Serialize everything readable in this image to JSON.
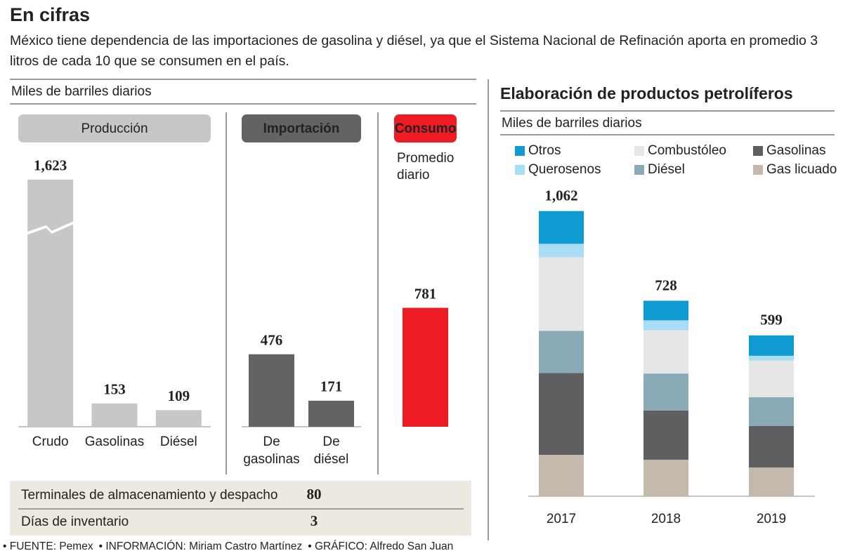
{
  "header": {
    "title": "En cifras",
    "subtitle": "México tiene dependencia de las importaciones de gasolina y diésel, ya que el Sistema Nacional de Refinación aporta en promedio 3 litros de cada 10 que se consumen en el país."
  },
  "chart_data": [
    {
      "type": "bar",
      "unit_label": "Miles de barriles diarios",
      "ylim": [
        0,
        1650
      ],
      "axis_break": true,
      "groups": [
        {
          "name": "Producción",
          "color": "#c6c7c9",
          "categories": [
            "Crudo",
            "Gasolinas",
            "Diésel"
          ],
          "values": [
            1623,
            153,
            109
          ],
          "value_labels": [
            "1,623",
            "153",
            "109"
          ]
        },
        {
          "name": "Importación",
          "color": "#636366",
          "categories": [
            "De gasolinas",
            "De diésel"
          ],
          "values": [
            476,
            171
          ]
        },
        {
          "name": "Consumo",
          "color": "#ed1c24",
          "subtitle": "Promedio diario",
          "values": [
            781
          ]
        }
      ]
    },
    {
      "type": "stacked_bar",
      "title": "Elaboración de productos petrolíferos",
      "unit_label": "Miles de barriles diarios",
      "categories": [
        "2017",
        "2018",
        "2019"
      ],
      "ylim": [
        0,
        1150
      ],
      "totals": [
        1062,
        728,
        599
      ],
      "total_labels": [
        "1,062",
        "728",
        "599"
      ],
      "series": [
        {
          "name": "Otros",
          "color": "#0f9bd1",
          "values": [
            122,
            73,
            76
          ]
        },
        {
          "name": "Querosenos",
          "color": "#a8ddf5",
          "values": [
            50,
            37,
            18
          ]
        },
        {
          "name": "Combustóleo",
          "color": "#e6e6e6",
          "values": [
            274,
            161,
            136
          ]
        },
        {
          "name": "Diésel",
          "color": "#8aabb6",
          "values": [
            157,
            138,
            107
          ]
        },
        {
          "name": "Gasolinas",
          "color": "#5f5f61",
          "values": [
            305,
            183,
            155
          ]
        },
        {
          "name": "Gas licuado",
          "color": "#c5b9ae",
          "values": [
            154,
            136,
            107
          ]
        }
      ]
    }
  ],
  "table": {
    "rows": [
      [
        "Terminales de almacenamiento y despacho",
        80
      ],
      [
        "Días de inventario",
        3
      ]
    ]
  },
  "footer": [
    "FUENTE: Pemex",
    "INFORMACIÓN: Miriam Castro Martínez",
    "GRÁFICO: Alfredo San Juan"
  ]
}
